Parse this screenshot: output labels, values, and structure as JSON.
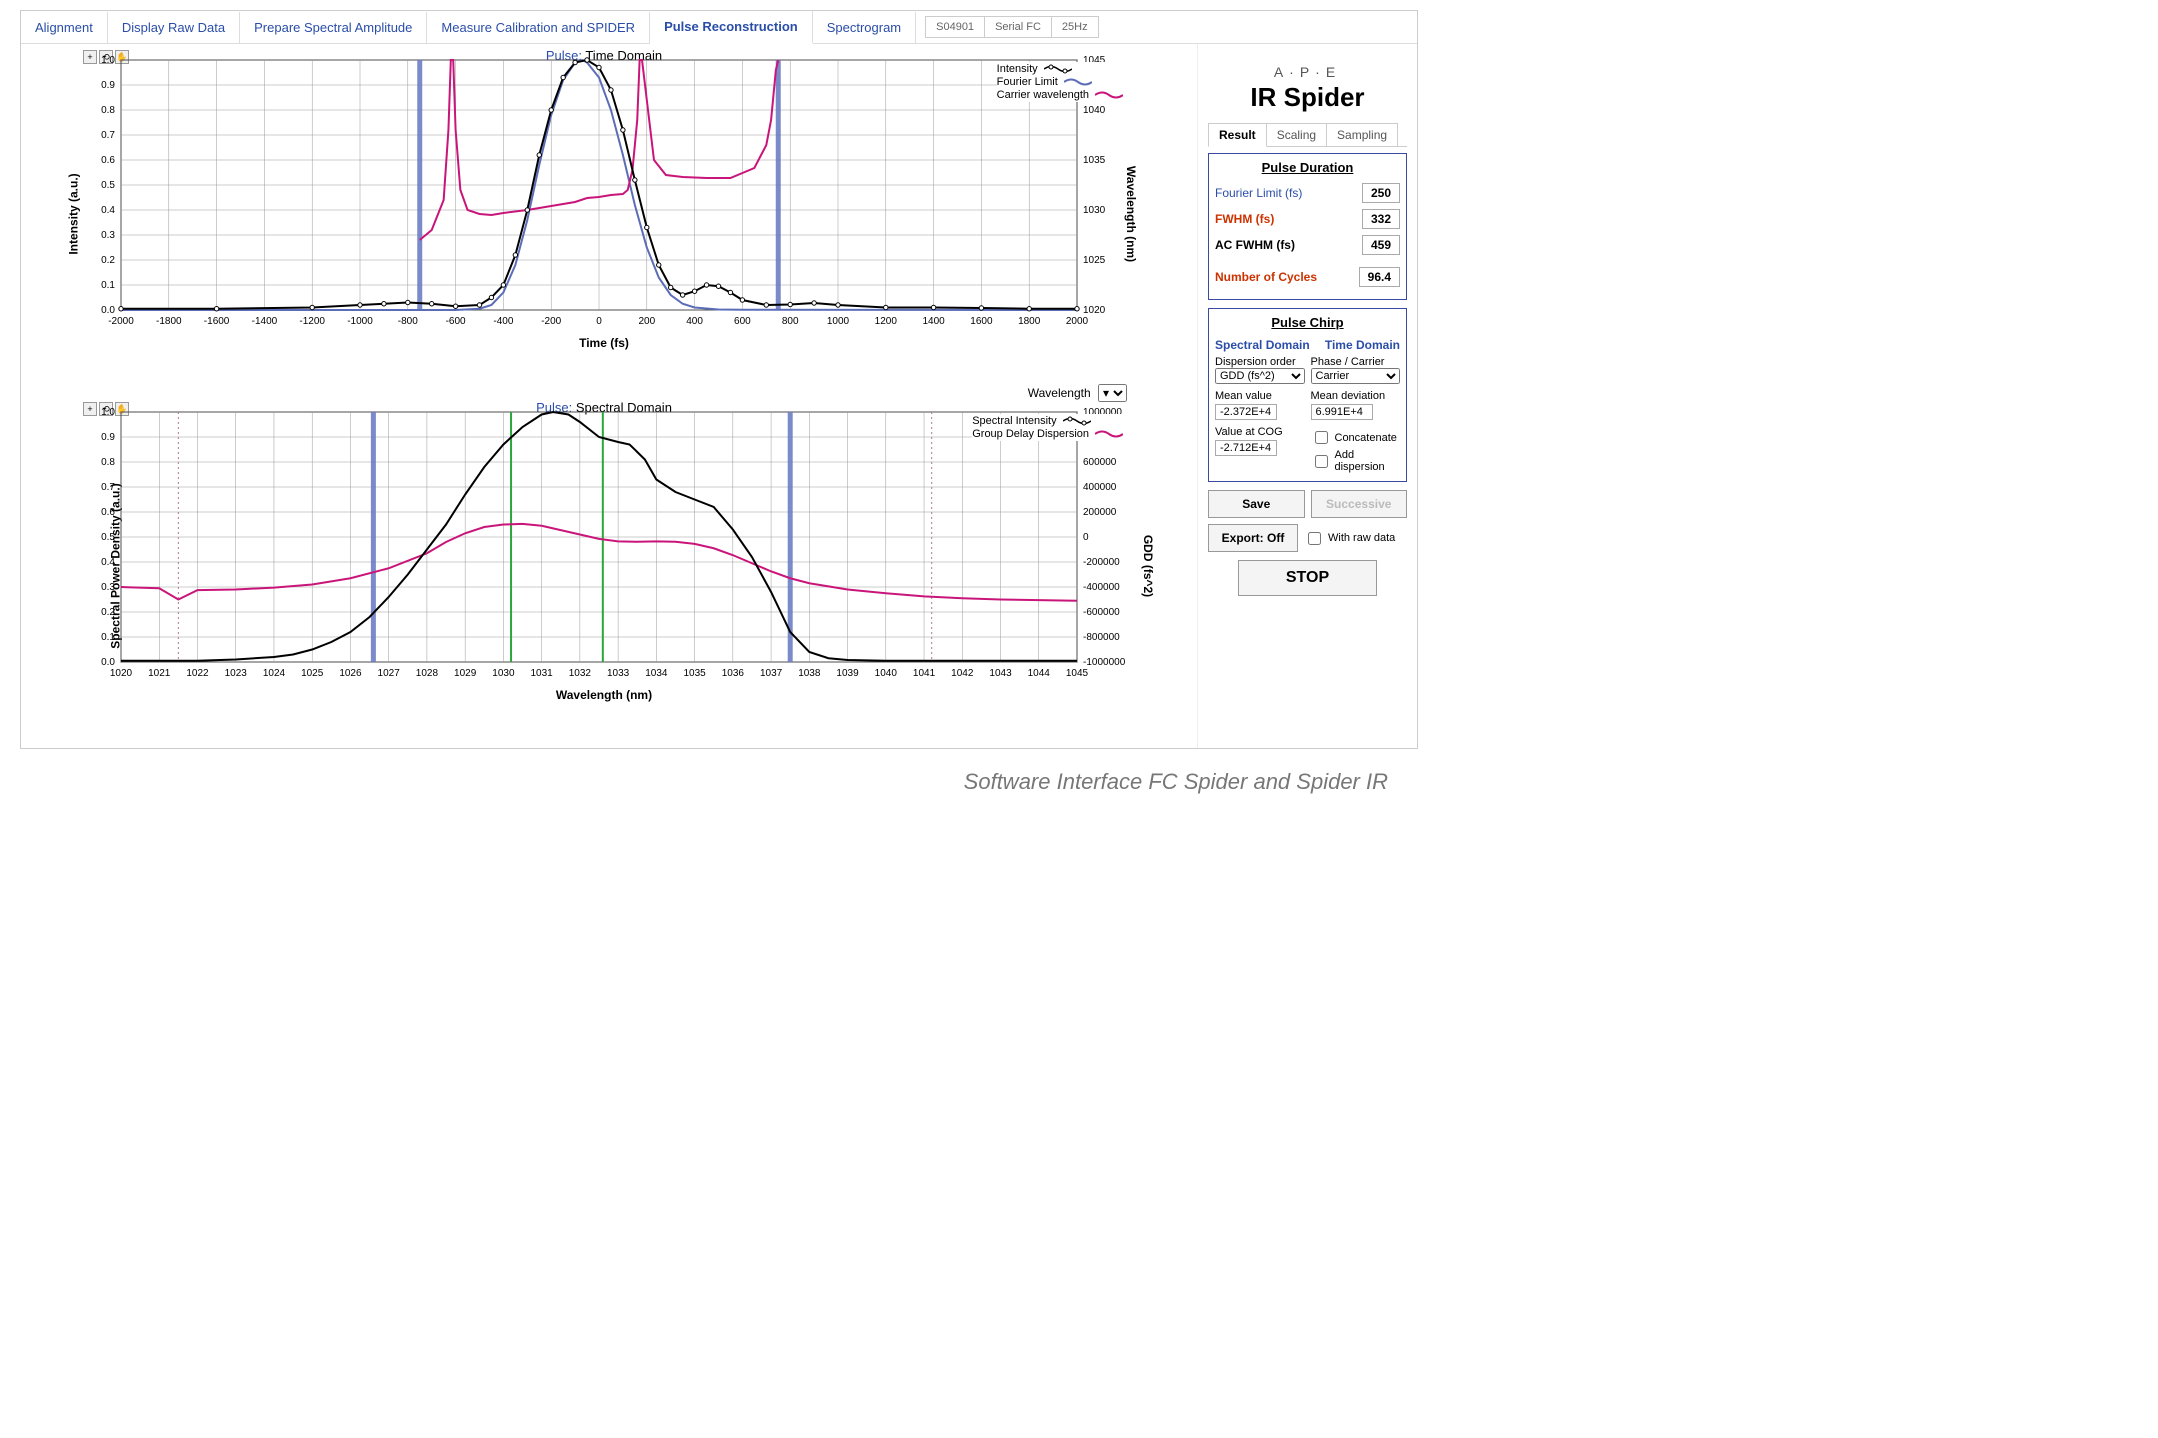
{
  "tabs": [
    {
      "label": "Alignment"
    },
    {
      "label": "Display Raw Data"
    },
    {
      "label": "Prepare Spectral Amplitude"
    },
    {
      "label": "Measure Calibration and SPIDER"
    },
    {
      "label": "Pulse Reconstruction",
      "active": true
    },
    {
      "label": "Spectrogram"
    }
  ],
  "status": {
    "serial": "S04901",
    "conn": "Serial FC",
    "rate": "25Hz"
  },
  "logo": {
    "brand": "A·P·E",
    "product": "IR Spider"
  },
  "side_tabs": [
    "Result",
    "Scaling",
    "Sampling"
  ],
  "pulse_duration": {
    "title": "Pulse Duration",
    "fourier_label": "Fourier Limit (fs)",
    "fourier_val": "250",
    "fwhm_label": "FWHM (fs)",
    "fwhm_val": "332",
    "acfwhm_label": "AC FWHM (fs)",
    "acfwhm_val": "459",
    "cycles_label": "Number of Cycles",
    "cycles_val": "96.4"
  },
  "pulse_chirp": {
    "title": "Pulse Chirp",
    "spectral_hdr": "Spectral Domain",
    "time_hdr": "Time Domain",
    "disp_label": "Dispersion order",
    "disp_sel": "GDD (fs^2)",
    "phase_label": "Phase / Carrier",
    "phase_sel": "Carrier",
    "mean_value_label": "Mean value",
    "mean_dev_label": "Mean deviation",
    "mean_value": "-2.372E+4",
    "mean_dev": "6.991E+4",
    "value_at_cog_label": "Value at COG",
    "value_at_cog": "-2.712E+4",
    "concat_label": "Concatenate",
    "add_disp_label": "Add dispersion"
  },
  "buttons": {
    "save": "Save",
    "successive": "Successive",
    "export": "Export: Off",
    "raw": "With raw data",
    "stop": "STOP"
  },
  "chart_time": {
    "title_prefix": "Pulse:",
    "title_rest": "Time Domain",
    "ylabel_left": "Intensity (a.u.)",
    "ylabel_right": "Wavelength (nm)",
    "xlabel": "Time (fs)",
    "xlim": [
      -2000,
      2000
    ],
    "xtick_step": 200,
    "ylim": [
      0.0,
      1.0
    ],
    "ytick_step": 0.1,
    "y2lim": [
      1020,
      1045
    ],
    "y2tick_step": 5,
    "vbar_x": [
      -750,
      750
    ],
    "colors": {
      "grid": "#999",
      "axis": "#000",
      "intensity": "#000000",
      "marker": "#000000",
      "fourier": "#5c6db8",
      "carrier": "#c9157a",
      "vbar": "#6d7dc3"
    },
    "legend": [
      {
        "label": "Intensity",
        "style": "intensity"
      },
      {
        "label": "Fourier Limit",
        "style": "fourier"
      },
      {
        "label": "Carrier wavelength",
        "style": "carrier"
      }
    ],
    "intensity": [
      [
        -2000,
        0.005
      ],
      [
        -1600,
        0.005
      ],
      [
        -1200,
        0.01
      ],
      [
        -1000,
        0.02
      ],
      [
        -900,
        0.025
      ],
      [
        -800,
        0.03
      ],
      [
        -700,
        0.025
      ],
      [
        -600,
        0.015
      ],
      [
        -500,
        0.02
      ],
      [
        -450,
        0.05
      ],
      [
        -400,
        0.1
      ],
      [
        -350,
        0.22
      ],
      [
        -300,
        0.4
      ],
      [
        -250,
        0.62
      ],
      [
        -200,
        0.8
      ],
      [
        -150,
        0.93
      ],
      [
        -100,
        0.99
      ],
      [
        -50,
        1.0
      ],
      [
        0,
        0.97
      ],
      [
        50,
        0.88
      ],
      [
        100,
        0.72
      ],
      [
        150,
        0.52
      ],
      [
        200,
        0.33
      ],
      [
        250,
        0.18
      ],
      [
        300,
        0.09
      ],
      [
        350,
        0.06
      ],
      [
        400,
        0.075
      ],
      [
        450,
        0.1
      ],
      [
        500,
        0.095
      ],
      [
        550,
        0.07
      ],
      [
        600,
        0.04
      ],
      [
        700,
        0.02
      ],
      [
        800,
        0.022
      ],
      [
        900,
        0.028
      ],
      [
        1000,
        0.02
      ],
      [
        1200,
        0.01
      ],
      [
        1400,
        0.01
      ],
      [
        1600,
        0.008
      ],
      [
        1800,
        0.005
      ],
      [
        2000,
        0.005
      ]
    ],
    "fourier": [
      [
        -2000,
        0.0
      ],
      [
        -800,
        0.0
      ],
      [
        -600,
        0.0
      ],
      [
        -500,
        0.005
      ],
      [
        -450,
        0.02
      ],
      [
        -400,
        0.07
      ],
      [
        -350,
        0.18
      ],
      [
        -300,
        0.36
      ],
      [
        -250,
        0.58
      ],
      [
        -200,
        0.78
      ],
      [
        -150,
        0.92
      ],
      [
        -100,
        0.99
      ],
      [
        -70,
        1.0
      ],
      [
        -50,
        0.99
      ],
      [
        0,
        0.93
      ],
      [
        50,
        0.8
      ],
      [
        100,
        0.62
      ],
      [
        150,
        0.42
      ],
      [
        200,
        0.25
      ],
      [
        250,
        0.13
      ],
      [
        300,
        0.06
      ],
      [
        350,
        0.025
      ],
      [
        400,
        0.01
      ],
      [
        500,
        0.002
      ],
      [
        600,
        0.001
      ],
      [
        2000,
        0.0
      ]
    ],
    "carrier": [
      [
        -750,
        1027
      ],
      [
        -700,
        1028
      ],
      [
        -650,
        1031
      ],
      [
        -630,
        1038
      ],
      [
        -620,
        1045
      ],
      [
        -610,
        1045
      ],
      [
        -600,
        1038
      ],
      [
        -580,
        1032
      ],
      [
        -550,
        1030
      ],
      [
        -500,
        1029.6
      ],
      [
        -450,
        1029.5
      ],
      [
        -400,
        1029.7
      ],
      [
        -300,
        1030.0
      ],
      [
        -200,
        1030.4
      ],
      [
        -100,
        1030.8
      ],
      [
        -50,
        1031.2
      ],
      [
        0,
        1031.3
      ],
      [
        50,
        1031.5
      ],
      [
        100,
        1031.6
      ],
      [
        120,
        1032.0
      ],
      [
        140,
        1034
      ],
      [
        160,
        1039
      ],
      [
        170,
        1045
      ],
      [
        180,
        1045
      ],
      [
        200,
        1041
      ],
      [
        230,
        1035
      ],
      [
        280,
        1033.5
      ],
      [
        350,
        1033.3
      ],
      [
        450,
        1033.2
      ],
      [
        550,
        1033.2
      ],
      [
        650,
        1034.2
      ],
      [
        700,
        1036.5
      ],
      [
        720,
        1039
      ],
      [
        740,
        1044
      ],
      [
        750,
        1045
      ]
    ]
  },
  "chart_spec": {
    "title_prefix": "Pulse:",
    "title_rest": "Spectral Domain",
    "ylabel_left": "Spectral Power Density (a.u.)",
    "ylabel_right": "GDD (fs^2)",
    "xlabel": "Wavelength (nm)",
    "xlim": [
      1020,
      1045
    ],
    "xtick_step": 1,
    "ylim": [
      0.0,
      1.0
    ],
    "ytick_step": 0.1,
    "y2lim": [
      -1000000,
      1000000
    ],
    "y2tick_step": 200000,
    "vbar_x": [
      1026.6,
      1037.5
    ],
    "vline_green_x": [
      1030.2,
      1032.6
    ],
    "vline_dotted_x": [
      1021.5,
      1041.2
    ],
    "colors": {
      "grid": "#999",
      "axis": "#000",
      "spectral": "#000000",
      "gdd": "#c9157a",
      "vbar": "#6d7dc3",
      "green": "#2aa63a",
      "dotted": "#b0788f"
    },
    "legend": [
      {
        "label": "Spectral Intensity",
        "style": "spectral"
      },
      {
        "label": "Group Delay Dispersion",
        "style": "gdd"
      }
    ],
    "spectral": [
      [
        1020,
        0.005
      ],
      [
        1021,
        0.005
      ],
      [
        1022,
        0.005
      ],
      [
        1023,
        0.01
      ],
      [
        1024,
        0.02
      ],
      [
        1024.5,
        0.03
      ],
      [
        1025,
        0.05
      ],
      [
        1025.5,
        0.08
      ],
      [
        1026,
        0.12
      ],
      [
        1026.5,
        0.18
      ],
      [
        1027,
        0.26
      ],
      [
        1027.5,
        0.35
      ],
      [
        1028,
        0.45
      ],
      [
        1028.5,
        0.55
      ],
      [
        1029,
        0.67
      ],
      [
        1029.5,
        0.78
      ],
      [
        1030,
        0.87
      ],
      [
        1030.5,
        0.94
      ],
      [
        1031,
        0.99
      ],
      [
        1031.3,
        1.0
      ],
      [
        1031.7,
        0.99
      ],
      [
        1032,
        0.96
      ],
      [
        1032.5,
        0.9
      ],
      [
        1033,
        0.88
      ],
      [
        1033.3,
        0.87
      ],
      [
        1033.7,
        0.81
      ],
      [
        1034,
        0.73
      ],
      [
        1034.5,
        0.68
      ],
      [
        1035,
        0.65
      ],
      [
        1035.5,
        0.62
      ],
      [
        1036,
        0.53
      ],
      [
        1036.5,
        0.42
      ],
      [
        1037,
        0.28
      ],
      [
        1037.5,
        0.12
      ],
      [
        1038,
        0.04
      ],
      [
        1038.5,
        0.015
      ],
      [
        1039,
        0.008
      ],
      [
        1040,
        0.005
      ],
      [
        1042,
        0.005
      ],
      [
        1045,
        0.005
      ]
    ],
    "gdd_fs2": [
      [
        1020,
        -400000
      ],
      [
        1021,
        -410000
      ],
      [
        1021.5,
        -500000
      ],
      [
        1022,
        -425000
      ],
      [
        1023,
        -420000
      ],
      [
        1024,
        -405000
      ],
      [
        1025,
        -380000
      ],
      [
        1026,
        -330000
      ],
      [
        1027,
        -250000
      ],
      [
        1028,
        -130000
      ],
      [
        1028.5,
        -40000
      ],
      [
        1029,
        30000
      ],
      [
        1029.5,
        80000
      ],
      [
        1030,
        100000
      ],
      [
        1030.5,
        105000
      ],
      [
        1031,
        90000
      ],
      [
        1031.5,
        55000
      ],
      [
        1032,
        20000
      ],
      [
        1032.5,
        -15000
      ],
      [
        1033,
        -35000
      ],
      [
        1033.5,
        -38000
      ],
      [
        1034,
        -35000
      ],
      [
        1034.5,
        -38000
      ],
      [
        1035,
        -55000
      ],
      [
        1035.5,
        -90000
      ],
      [
        1036,
        -145000
      ],
      [
        1036.5,
        -210000
      ],
      [
        1037,
        -275000
      ],
      [
        1037.5,
        -330000
      ],
      [
        1038,
        -370000
      ],
      [
        1039,
        -420000
      ],
      [
        1040,
        -450000
      ],
      [
        1041,
        -475000
      ],
      [
        1042,
        -490000
      ],
      [
        1043,
        -500000
      ],
      [
        1044,
        -505000
      ],
      [
        1045,
        -510000
      ]
    ],
    "wavelength_select_label": "Wavelength"
  },
  "caption": "Software Interface FC Spider and Spider IR"
}
